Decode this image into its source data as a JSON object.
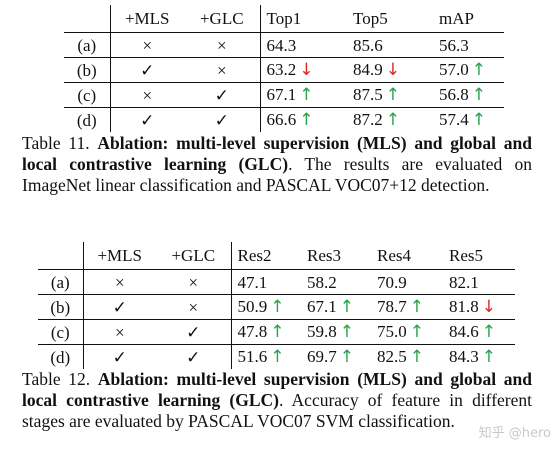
{
  "table11": {
    "headers": [
      "",
      "+MLS",
      "+GLC",
      "Top1",
      "Top5",
      "mAP"
    ],
    "rows": [
      {
        "label": "(a)",
        "mls": "×",
        "glc": "×",
        "top1": {
          "v": "64.3",
          "a": ""
        },
        "top5": {
          "v": "85.6",
          "a": ""
        },
        "map": {
          "v": "56.3",
          "a": ""
        }
      },
      {
        "label": "(b)",
        "mls": "✓",
        "glc": "×",
        "top1": {
          "v": "63.2",
          "a": "↓"
        },
        "top5": {
          "v": "84.9",
          "a": "↓"
        },
        "map": {
          "v": "57.0",
          "a": "↑"
        }
      },
      {
        "label": "(c)",
        "mls": "×",
        "glc": "✓",
        "top1": {
          "v": "67.1",
          "a": "↑"
        },
        "top5": {
          "v": "87.5",
          "a": "↑"
        },
        "map": {
          "v": "56.8",
          "a": "↑"
        }
      },
      {
        "label": "(d)",
        "mls": "✓",
        "glc": "✓",
        "top1": {
          "v": "66.6",
          "a": "↑"
        },
        "top5": {
          "v": "87.2",
          "a": "↑"
        },
        "map": {
          "v": "57.4",
          "a": "↑"
        }
      }
    ],
    "caption": {
      "prefix": "Table 11. ",
      "bold": "Ablation: multi-level supervision (MLS) and global and local contrastive learning (GLC)",
      "rest": ". The results are evaluated on ImageNet linear classification and PASCAL VOC07+12 detection."
    }
  },
  "table12": {
    "headers": [
      "",
      "+MLS",
      "+GLC",
      "Res2",
      "Res3",
      "Res4",
      "Res5"
    ],
    "rows": [
      {
        "label": "(a)",
        "mls": "×",
        "glc": "×",
        "res2": {
          "v": "47.1",
          "a": ""
        },
        "res3": {
          "v": "58.2",
          "a": ""
        },
        "res4": {
          "v": "70.9",
          "a": ""
        },
        "res5": {
          "v": "82.1",
          "a": ""
        }
      },
      {
        "label": "(b)",
        "mls": "✓",
        "glc": "×",
        "res2": {
          "v": "50.9",
          "a": "↑"
        },
        "res3": {
          "v": "67.1",
          "a": "↑"
        },
        "res4": {
          "v": "78.7",
          "a": "↑"
        },
        "res5": {
          "v": "81.8",
          "a": "↓"
        }
      },
      {
        "label": "(c)",
        "mls": "×",
        "glc": "✓",
        "res2": {
          "v": "47.8",
          "a": "↑"
        },
        "res3": {
          "v": "59.8",
          "a": "↑"
        },
        "res4": {
          "v": "75.0",
          "a": "↑"
        },
        "res5": {
          "v": "84.6",
          "a": "↑"
        }
      },
      {
        "label": "(d)",
        "mls": "✓",
        "glc": "✓",
        "res2": {
          "v": "51.6",
          "a": "↑"
        },
        "res3": {
          "v": "69.7",
          "a": "↑"
        },
        "res4": {
          "v": "82.5",
          "a": "↑"
        },
        "res5": {
          "v": "84.3",
          "a": "↑"
        }
      }
    ],
    "caption": {
      "prefix": "Table 12. ",
      "bold": "Ablation: multi-level supervision (MLS) and global and local contrastive learning (GLC)",
      "rest": ". Accuracy of feature in different stages are evaluated by PASCAL VOC07 SVM classification."
    }
  },
  "colors": {
    "up": "#2aa34a",
    "down": "#d62a20"
  },
  "watermark": "知乎 @hero"
}
